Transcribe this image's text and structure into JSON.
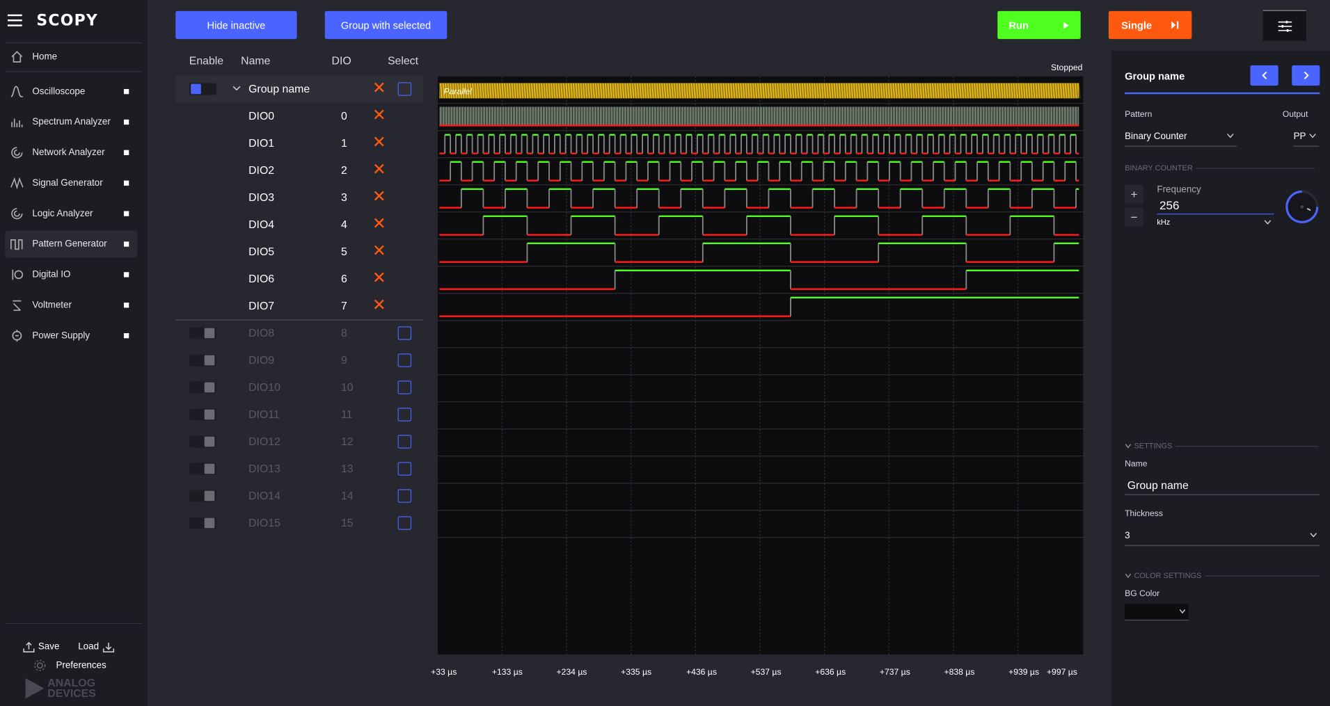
{
  "app": {
    "logo": "SCOPY"
  },
  "sidebar": {
    "home": "Home",
    "items": [
      {
        "label": "Oscilloscope"
      },
      {
        "label": "Spectrum Analyzer"
      },
      {
        "label": "Network Analyzer"
      },
      {
        "label": "Signal Generator"
      },
      {
        "label": "Logic Analyzer"
      },
      {
        "label": "Pattern Generator"
      },
      {
        "label": "Digital IO"
      },
      {
        "label": "Voltmeter"
      },
      {
        "label": "Power Supply"
      }
    ],
    "save": "Save",
    "load": "Load",
    "preferences": "Preferences",
    "brand_line1": "ANALOG",
    "brand_line2": "DEVICES"
  },
  "toolbar": {
    "hide_inactive": "Hide inactive",
    "group_with_selected": "Group with selected",
    "run": "Run",
    "single": "Single"
  },
  "channel_list": {
    "headers": {
      "enable": "Enable",
      "name": "Name",
      "dio": "DIO",
      "select": "Select"
    },
    "group_name": "Group name",
    "channels": [
      {
        "name": "DIO0",
        "dio": "0"
      },
      {
        "name": "DIO1",
        "dio": "1"
      },
      {
        "name": "DIO2",
        "dio": "2"
      },
      {
        "name": "DIO3",
        "dio": "3"
      },
      {
        "name": "DIO4",
        "dio": "4"
      },
      {
        "name": "DIO5",
        "dio": "5"
      },
      {
        "name": "DIO6",
        "dio": "6"
      },
      {
        "name": "DIO7",
        "dio": "7"
      }
    ],
    "inactive": [
      {
        "name": "DIO8",
        "dio": "8"
      },
      {
        "name": "DIO9",
        "dio": "9"
      },
      {
        "name": "DIO10",
        "dio": "10"
      },
      {
        "name": "DIO11",
        "dio": "11"
      },
      {
        "name": "DIO12",
        "dio": "12"
      },
      {
        "name": "DIO13",
        "dio": "13"
      },
      {
        "name": "DIO14",
        "dio": "14"
      },
      {
        "name": "DIO15",
        "dio": "15"
      }
    ]
  },
  "plot": {
    "status": "Stopped",
    "parallel_label": "Parallel",
    "x_ticks": [
      "+33 µs",
      "+133 µs",
      "+234 µs",
      "+335 µs",
      "+436 µs",
      "+537 µs",
      "+636 µs",
      "+737 µs",
      "+838 µs",
      "+939 µs",
      "+997 µs"
    ],
    "colors": {
      "high": "#4fff1f",
      "low": "#ff1a1a",
      "bus": "#ffd21a"
    }
  },
  "right_panel": {
    "title": "Group name",
    "pattern_label": "Pattern",
    "pattern_value": "Binary Counter",
    "output_label": "Output",
    "output_value": "PP",
    "section_binary_counter": "BINARY COUNTER",
    "frequency_label": "Frequency",
    "frequency_value": "256",
    "frequency_unit": "kHz",
    "section_settings": "SETTINGS",
    "name_label": "Name",
    "name_value": "Group name",
    "thickness_label": "Thickness",
    "thickness_value": "3",
    "section_color": "COLOR SETTINGS",
    "bg_color_label": "BG Color"
  }
}
